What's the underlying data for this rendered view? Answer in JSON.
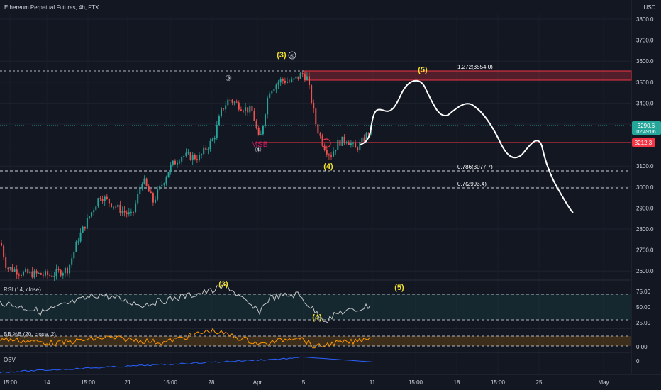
{
  "header": {
    "title": "Ethereum Perpetual Futures, 4h, FTX",
    "currency": "USD"
  },
  "price_badges": {
    "last_price": "3290.6",
    "countdown": "02:49:06",
    "line_price": "3212.3"
  },
  "labels": {
    "wave3_top": "(3)",
    "wave5_circle_top": "⑤",
    "wave3_circle": "③",
    "wave4_circle": "④",
    "msb": "MSB",
    "wave5_target": "(5)",
    "wave4": "(4)",
    "rsi_wave3": "(3)",
    "rsi_wave4": "(4)",
    "rsi_wave5": "(5)"
  },
  "fibs": [
    {
      "label": "1.272(3554.0)",
      "price": 3554.0
    },
    {
      "label": "0.786(3077.7)",
      "price": 3077.7
    },
    {
      "label": "0.7(2993.4)",
      "price": 2993.4
    }
  ],
  "colors": {
    "background": "#131722",
    "up": "#26a69a",
    "down": "#ef5350",
    "projection": "#ffffff",
    "wave_label": "#f0e130",
    "zone": "#f23645",
    "rsi_line": "#c8c8c8",
    "bb_line": "#ff9800",
    "obv_line": "#2962ff"
  },
  "indicators": {
    "rsi": {
      "label": "RSI (14, close)",
      "ticks": [
        "75.00",
        "50.00",
        "25.00"
      ],
      "upper": 70,
      "lower": 30
    },
    "bb": {
      "label": "BB %B (20, close, 2)",
      "ticks": [
        "0.00"
      ]
    },
    "obv": {
      "label": "OBV",
      "ticks": [
        "0"
      ]
    }
  },
  "chart_data": {
    "type": "candlestick",
    "title": "Ethereum Perpetual Futures, 4h, FTX",
    "y_axis_ticks": [
      3800,
      3700,
      3600,
      3500,
      3400,
      3300,
      3200,
      3100,
      3000,
      2900,
      2800,
      2700,
      2600
    ],
    "ylim": [
      2555,
      3870
    ],
    "x_axis_labels": [
      "15:00",
      "14",
      "15:00",
      "21",
      "15:00",
      "28",
      "Apr",
      "5",
      "11",
      "15:00",
      "18",
      "15:00",
      "25",
      "May"
    ],
    "key_points": [
      {
        "x": "Mar 14",
        "close": 2590
      },
      {
        "x": "Mar 21",
        "close": 3020
      },
      {
        "x": "Mar 28",
        "close": 3440
      },
      {
        "x": "Apr 3",
        "close": 3530
      },
      {
        "x": "Apr 7",
        "close": 3150
      },
      {
        "x": "Apr 10",
        "close": 3290.6
      }
    ],
    "resistance_zone": [
      3510,
      3554
    ],
    "horizontal_line": 3212.3,
    "projection_path": [
      3180,
      3340,
      3370,
      3510,
      3380,
      3410,
      3200,
      3220,
      2870
    ],
    "grid": true,
    "legend": "none"
  }
}
